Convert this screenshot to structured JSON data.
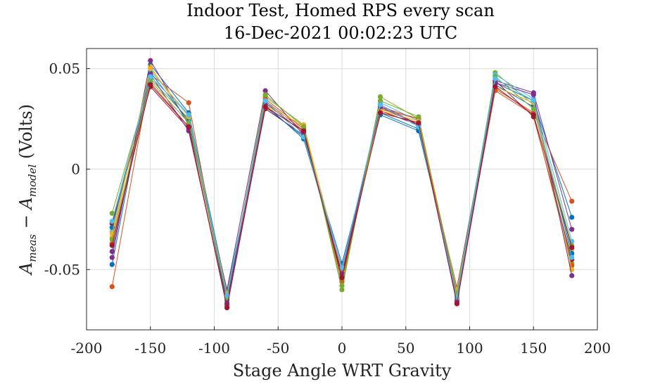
{
  "chart_data": {
    "type": "line",
    "title": "Indoor Test, Homed RPS every scan",
    "subtitle": "16-Dec-2021 00:02:23 UTC",
    "xlabel": "Stage Angle WRT Gravity",
    "ylabel": {
      "prefix": "A",
      "sub1": "meas",
      "minus": " − ",
      "prefix2": "A",
      "sub2": "model",
      "suffix": " (Volts)"
    },
    "xlim": [
      -200,
      200
    ],
    "ylim": [
      -0.08,
      0.06
    ],
    "xticks": [
      -200,
      -150,
      -100,
      -50,
      0,
      50,
      100,
      150,
      200
    ],
    "xtick_labels": [
      "-200",
      "-150",
      "-100",
      "-50",
      "0",
      "50",
      "100",
      "150",
      "200"
    ],
    "yticks": [
      -0.05,
      0,
      0.05
    ],
    "ytick_labels": [
      "-0.05",
      "0",
      "0.05"
    ],
    "grid": true,
    "x": [
      -180,
      -150,
      -120,
      -90,
      -60,
      -30,
      0,
      30,
      60,
      90,
      120,
      150,
      180
    ],
    "series": [
      {
        "color": "#0072BD",
        "values": [
          -0.0475,
          0.052,
          0.028,
          -0.061,
          0.031,
          0.016,
          -0.047,
          0.028,
          0.02,
          -0.06,
          0.043,
          0.034,
          -0.024
        ]
      },
      {
        "color": "#D95319",
        "values": [
          -0.0585,
          0.047,
          0.033,
          -0.068,
          0.034,
          0.019,
          -0.055,
          0.031,
          0.025,
          -0.066,
          0.04,
          0.028,
          -0.016
        ]
      },
      {
        "color": "#EDB120",
        "values": [
          -0.034,
          0.051,
          0.023,
          -0.064,
          0.032,
          0.021,
          -0.054,
          0.03,
          0.023,
          -0.063,
          0.041,
          0.033,
          -0.04
        ]
      },
      {
        "color": "#7E2F8E",
        "values": [
          -0.044,
          0.054,
          0.022,
          -0.06,
          0.039,
          0.017,
          -0.052,
          0.032,
          0.022,
          -0.059,
          0.044,
          0.038,
          -0.03
        ]
      },
      {
        "color": "#77AC30",
        "values": [
          -0.022,
          0.045,
          0.025,
          -0.066,
          0.036,
          0.022,
          -0.06,
          0.036,
          0.025,
          -0.065,
          0.048,
          0.032,
          -0.047
        ]
      },
      {
        "color": "#4DBEEE",
        "values": [
          -0.031,
          0.049,
          0.027,
          -0.063,
          0.033,
          0.018,
          -0.05,
          0.033,
          0.024,
          -0.062,
          0.047,
          0.035,
          -0.036
        ]
      },
      {
        "color": "#A2142F",
        "values": [
          -0.027,
          0.041,
          0.02,
          -0.067,
          0.03,
          0.017,
          -0.053,
          0.029,
          0.022,
          -0.064,
          0.044,
          0.026,
          -0.045
        ]
      },
      {
        "color": "#0072BD",
        "values": [
          -0.029,
          0.048,
          0.024,
          -0.065,
          0.032,
          0.015,
          -0.049,
          0.027,
          0.019,
          -0.061,
          0.042,
          0.031,
          -0.042
        ]
      },
      {
        "color": "#D95319",
        "values": [
          -0.037,
          0.043,
          0.021,
          -0.068,
          0.035,
          0.02,
          -0.056,
          0.03,
          0.025,
          -0.065,
          0.039,
          0.027,
          -0.048
        ]
      },
      {
        "color": "#EDB120",
        "values": [
          -0.032,
          0.05,
          0.026,
          -0.062,
          0.031,
          0.022,
          -0.051,
          0.029,
          0.024,
          -0.06,
          0.041,
          0.033,
          -0.05
        ]
      },
      {
        "color": "#7E2F8E",
        "values": [
          -0.041,
          0.047,
          0.019,
          -0.067,
          0.033,
          0.018,
          -0.052,
          0.031,
          0.022,
          -0.066,
          0.043,
          0.037,
          -0.053
        ]
      },
      {
        "color": "#77AC30",
        "values": [
          -0.035,
          0.044,
          0.023,
          -0.064,
          0.037,
          0.021,
          -0.058,
          0.034,
          0.026,
          -0.062,
          0.046,
          0.03,
          -0.038
        ]
      },
      {
        "color": "#4DBEEE",
        "values": [
          -0.026,
          0.046,
          0.027,
          -0.063,
          0.034,
          0.016,
          -0.049,
          0.032,
          0.021,
          -0.064,
          0.045,
          0.034,
          -0.044
        ]
      },
      {
        "color": "#A2142F",
        "values": [
          -0.038,
          0.042,
          0.021,
          -0.069,
          0.031,
          0.019,
          -0.054,
          0.028,
          0.023,
          -0.067,
          0.041,
          0.027,
          -0.039
        ]
      }
    ]
  }
}
